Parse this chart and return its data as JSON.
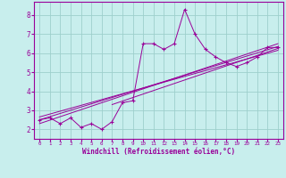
{
  "xlabel": "Windchill (Refroidissement éolien,°C)",
  "bg_color": "#c8eeed",
  "grid_color": "#9dcfcc",
  "line_color": "#990099",
  "x_data": [
    0,
    1,
    2,
    3,
    4,
    5,
    6,
    7,
    8,
    9,
    10,
    11,
    12,
    13,
    14,
    15,
    16,
    17,
    18,
    19,
    20,
    21,
    22,
    23
  ],
  "y_data": [
    2.5,
    2.6,
    2.3,
    2.6,
    2.1,
    2.3,
    2.0,
    2.4,
    3.4,
    3.5,
    6.5,
    6.5,
    6.2,
    6.5,
    8.3,
    7.0,
    6.2,
    5.8,
    5.5,
    5.3,
    5.5,
    5.8,
    6.3,
    6.3
  ],
  "ylim": [
    1.5,
    8.7
  ],
  "xlim": [
    -0.5,
    23.5
  ],
  "trend_lines": [
    {
      "x0": 0,
      "y0": 2.5,
      "x1": 23,
      "y1": 6.35
    },
    {
      "x0": 0,
      "y0": 2.3,
      "x1": 23,
      "y1": 6.5
    },
    {
      "x0": 0,
      "y0": 2.65,
      "x1": 23,
      "y1": 6.15
    },
    {
      "x0": 7,
      "y0": 3.3,
      "x1": 23,
      "y1": 6.25
    }
  ],
  "yticks": [
    2,
    3,
    4,
    5,
    6,
    7,
    8
  ],
  "xticks": [
    0,
    1,
    2,
    3,
    4,
    5,
    6,
    7,
    8,
    9,
    10,
    11,
    12,
    13,
    14,
    15,
    16,
    17,
    18,
    19,
    20,
    21,
    22,
    23
  ]
}
